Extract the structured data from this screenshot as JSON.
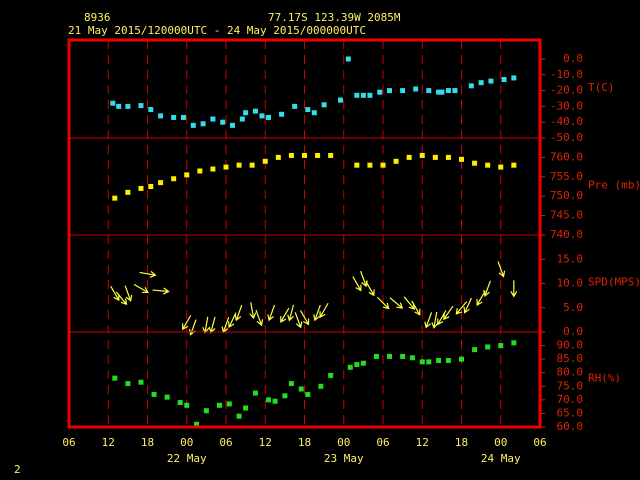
{
  "header": {
    "station": "8936",
    "location": "77.17S  123.39W  2085M",
    "time_range": "21 May 2015/120000UTC - 24 May 2015/000000UTC"
  },
  "footer": "2",
  "chart_data": [
    {
      "type": "scatter",
      "ylabel": "T(C)",
      "color": "#33ddee",
      "xlim": [
        6,
        78
      ],
      "ylim": [
        -50,
        12
      ],
      "yticks": [
        {
          "value": -50,
          "label": "-50.0"
        },
        {
          "value": -40,
          "label": "-40.0"
        },
        {
          "value": -30,
          "label": "-30.0"
        },
        {
          "value": -20,
          "label": "-20.0"
        },
        {
          "value": -10,
          "label": "-10.0"
        },
        {
          "value": 0,
          "label": "0.0"
        }
      ],
      "x": [
        12.7,
        13.6,
        15,
        17,
        18.5,
        20,
        22,
        23.5,
        25,
        26.5,
        28,
        29.5,
        31,
        32.5,
        33,
        34.5,
        35.5,
        36.5,
        38.5,
        40.5,
        42.5,
        43.5,
        45,
        47.5,
        48.7,
        50,
        51,
        52,
        53.5,
        55,
        57,
        59,
        61,
        62.5,
        63,
        64,
        65,
        67.5,
        69,
        70.5,
        72.5,
        74
      ],
      "values": [
        -28,
        -30,
        -30,
        -29.5,
        -32,
        -36,
        -37,
        -37,
        -42,
        -41,
        -38,
        -40,
        -42,
        -38,
        -34,
        -33,
        -36,
        -37,
        -35,
        -30,
        -32,
        -34,
        -29,
        -26,
        0,
        -23,
        -23,
        -23,
        -21,
        -20,
        -20,
        -19,
        -20,
        -21,
        -21,
        -20,
        -20,
        -17,
        -15,
        -14,
        -13,
        -12
      ]
    },
    {
      "type": "scatter",
      "ylabel": "Pre (mb)",
      "color": "#ffee00",
      "xlim": [
        6,
        78
      ],
      "ylim": [
        740,
        765
      ],
      "yticks": [
        {
          "value": 740,
          "label": "740.0"
        },
        {
          "value": 745,
          "label": "745.0"
        },
        {
          "value": 750,
          "label": "750.0"
        },
        {
          "value": 755,
          "label": "755.0"
        },
        {
          "value": 760,
          "label": "760.0"
        }
      ],
      "x": [
        13,
        15,
        17,
        18.5,
        20,
        22,
        24,
        26,
        28,
        30,
        32,
        34,
        36,
        38,
        40,
        42,
        44,
        46,
        50,
        52,
        54,
        56,
        58,
        60,
        62,
        64,
        66,
        68,
        70,
        72,
        74
      ],
      "values": [
        749.5,
        751,
        752,
        752.5,
        753.5,
        754.5,
        755.5,
        756.5,
        757,
        757.5,
        758,
        758,
        759,
        760,
        760.5,
        760.5,
        760.5,
        760.5,
        758,
        758,
        758,
        759,
        760,
        760.5,
        760,
        760,
        759.5,
        758.5,
        758,
        757.5,
        758
      ]
    },
    {
      "type": "wind",
      "ylabel": "SPD(MPS)",
      "color": "#ffff44",
      "xlim": [
        6,
        78
      ],
      "ylim": [
        0,
        20
      ],
      "yticks": [
        {
          "value": 0,
          "label": "0.0"
        },
        {
          "value": 5,
          "label": "5.0"
        },
        {
          "value": 10,
          "label": "10.0"
        },
        {
          "value": 15,
          "label": "15.0"
        }
      ],
      "x": [
        13,
        14,
        15,
        17,
        18,
        20,
        24,
        25,
        27,
        28,
        30,
        31,
        32,
        34,
        35,
        37,
        39,
        40,
        41,
        42,
        44,
        45,
        50,
        51,
        52,
        54,
        56,
        58,
        59,
        61,
        62,
        63,
        64,
        66,
        67,
        69,
        70,
        72,
        74
      ],
      "values": [
        8,
        7,
        8,
        9,
        12,
        8.5,
        2,
        1,
        1.5,
        1.5,
        1.5,
        2.5,
        4,
        4.5,
        3,
        4,
        3.5,
        4,
        2.5,
        3,
        4,
        4.5,
        10,
        11,
        9,
        6,
        6,
        6,
        5,
        2.5,
        2.5,
        3,
        4,
        5,
        5.5,
        7,
        9,
        13,
        9
      ],
      "directions": [
        150,
        140,
        160,
        120,
        100,
        95,
        210,
        200,
        190,
        195,
        200,
        205,
        200,
        170,
        160,
        200,
        210,
        195,
        160,
        150,
        200,
        210,
        150,
        160,
        150,
        135,
        130,
        140,
        150,
        200,
        190,
        210,
        215,
        220,
        205,
        210,
        200,
        160,
        180
      ]
    },
    {
      "type": "scatter",
      "ylabel": "RH(%)",
      "color": "#22dd22",
      "xlim": [
        6,
        78
      ],
      "ylim": [
        60,
        95
      ],
      "yticks": [
        {
          "value": 60,
          "label": "60.0"
        },
        {
          "value": 65,
          "label": "65.0"
        },
        {
          "value": 70,
          "label": "70.0"
        },
        {
          "value": 75,
          "label": "75.0"
        },
        {
          "value": 80,
          "label": "80.0"
        },
        {
          "value": 85,
          "label": "85.0"
        },
        {
          "value": 90,
          "label": "90.0"
        }
      ],
      "x": [
        13,
        15,
        17,
        19,
        21,
        23,
        24,
        25.5,
        27,
        29,
        30.5,
        32,
        33,
        34.5,
        36.5,
        37.5,
        39,
        40,
        41.5,
        42.5,
        44.5,
        46,
        49,
        50,
        51,
        53,
        55,
        57,
        58.5,
        60,
        61,
        62.5,
        64,
        66,
        68,
        70,
        72,
        74
      ],
      "values": [
        78,
        76,
        76.5,
        72,
        71,
        69,
        68,
        61,
        66,
        68,
        68.5,
        64,
        67,
        72.5,
        70,
        69.5,
        71.5,
        76,
        74,
        72,
        75,
        79,
        82,
        83,
        83.5,
        86,
        86,
        86,
        85.5,
        84,
        84,
        84.5,
        84.5,
        85,
        88.5,
        89.5,
        90,
        91
      ],
      "xticks": [
        {
          "value": 6,
          "label": "06"
        },
        {
          "value": 12,
          "label": "12"
        },
        {
          "value": 18,
          "label": "18"
        },
        {
          "value": 24,
          "label": "00"
        },
        {
          "value": 30,
          "label": "06"
        },
        {
          "value": 36,
          "label": "12"
        },
        {
          "value": 42,
          "label": "18"
        },
        {
          "value": 48,
          "label": "00"
        },
        {
          "value": 54,
          "label": "06"
        },
        {
          "value": 60,
          "label": "12"
        },
        {
          "value": 66,
          "label": "18"
        },
        {
          "value": 72,
          "label": "00"
        },
        {
          "value": 78,
          "label": "06"
        }
      ],
      "date_labels": [
        {
          "value": 24,
          "label": "22 May"
        },
        {
          "value": 48,
          "label": "23 May"
        },
        {
          "value": 72,
          "label": "24 May"
        }
      ]
    }
  ]
}
